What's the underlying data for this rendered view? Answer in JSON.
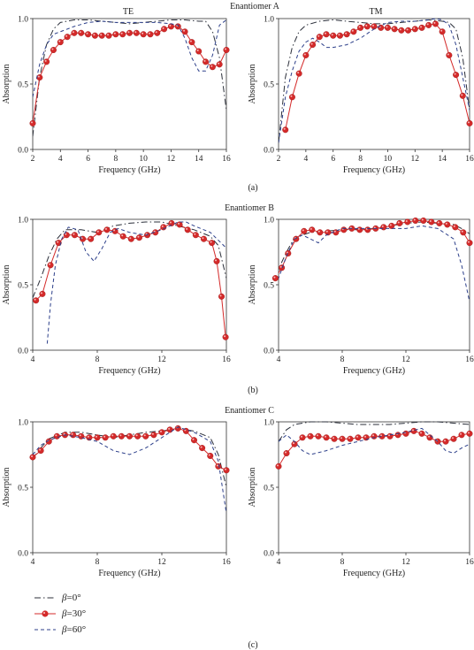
{
  "figure": {
    "row_titles": [
      "Enantiomer A",
      "Enantiomer B",
      "Enantiomer C"
    ],
    "column_titles": [
      "TE",
      "TM"
    ],
    "panel_labels": [
      "(a)",
      "(b)",
      "(c)"
    ],
    "legend": [
      {
        "symbol": "β",
        "label": "=0°",
        "style": "dash-dot"
      },
      {
        "symbol": "β",
        "label": "=30°",
        "style": "dots"
      },
      {
        "symbol": "β",
        "label": "=60°",
        "style": "dash"
      }
    ]
  },
  "colors": {
    "beta0": "#2b2f3a",
    "beta30": "#d42a2a",
    "beta60": "#2c3f8a",
    "axis": "#333333"
  },
  "chart_data": [
    {
      "type": "line",
      "title": "TE",
      "row_title": "Enantiomer A",
      "xlabel": "Frequency (GHz)",
      "ylabel": "Absorption",
      "xlim": [
        2,
        16
      ],
      "ylim": [
        0,
        1.0
      ],
      "xticks": [
        "2",
        "4",
        "6",
        "8",
        "10",
        "12",
        "14",
        "16"
      ],
      "yticks": [
        "0.0",
        "0.5",
        "1.0"
      ],
      "xtick_vals": [
        2,
        4,
        6,
        8,
        10,
        12,
        14,
        16
      ],
      "series": [
        {
          "name": "β=0°",
          "style": "dash-dot",
          "x": [
            2,
            2.5,
            3,
            3.5,
            4,
            5,
            6,
            7,
            8,
            9,
            10,
            11,
            12,
            13,
            14,
            14.5,
            15,
            15.5,
            16
          ],
          "y": [
            0.1,
            0.55,
            0.8,
            0.92,
            0.97,
            0.99,
            0.99,
            0.98,
            0.97,
            0.96,
            0.97,
            0.98,
            0.99,
            0.99,
            0.98,
            0.98,
            0.9,
            0.7,
            0.3
          ]
        },
        {
          "name": "β=30°",
          "style": "dots",
          "x": [
            2,
            2.5,
            3,
            3.5,
            4,
            4.5,
            5,
            5.5,
            6,
            6.5,
            7,
            7.5,
            8,
            8.5,
            9,
            9.5,
            10,
            10.5,
            11,
            11.5,
            12,
            12.5,
            13,
            13.5,
            14,
            14.5,
            15,
            15.5,
            16
          ],
          "y": [
            0.2,
            0.55,
            0.67,
            0.76,
            0.82,
            0.86,
            0.89,
            0.89,
            0.88,
            0.87,
            0.87,
            0.87,
            0.88,
            0.88,
            0.89,
            0.89,
            0.88,
            0.88,
            0.89,
            0.92,
            0.94,
            0.94,
            0.9,
            0.82,
            0.75,
            0.67,
            0.63,
            0.65,
            0.76
          ]
        },
        {
          "name": "β=60°",
          "style": "dash",
          "x": [
            2,
            2.5,
            3,
            3.5,
            4,
            5,
            6,
            7,
            8,
            9,
            10,
            11,
            12,
            12.5,
            13,
            13.5,
            14,
            14.5,
            15,
            15.5,
            16
          ],
          "y": [
            0.4,
            0.65,
            0.8,
            0.88,
            0.9,
            0.94,
            0.97,
            0.98,
            0.97,
            0.97,
            0.97,
            0.97,
            0.96,
            0.95,
            0.85,
            0.7,
            0.6,
            0.6,
            0.72,
            0.95,
            0.99
          ]
        }
      ]
    },
    {
      "type": "line",
      "title": "TM",
      "row_title": "Enantiomer A",
      "xlabel": "Frequency (GHz)",
      "ylabel": "Absorption",
      "xlim": [
        2,
        16
      ],
      "ylim": [
        0,
        1.0
      ],
      "xticks": [
        "2",
        "4",
        "6",
        "8",
        "10",
        "12",
        "14",
        "16"
      ],
      "yticks": [
        "0.0",
        "0.5",
        "1.0"
      ],
      "xtick_vals": [
        2,
        4,
        6,
        8,
        10,
        12,
        14,
        16
      ],
      "series": [
        {
          "name": "β=0°",
          "style": "dash-dot",
          "x": [
            2,
            2.5,
            3,
            3.5,
            4,
            5,
            6,
            7,
            8,
            9,
            10,
            11,
            12,
            13,
            14,
            14.5,
            15,
            15.5,
            16
          ],
          "y": [
            0.05,
            0.55,
            0.78,
            0.9,
            0.95,
            0.98,
            0.99,
            0.98,
            0.97,
            0.96,
            0.96,
            0.97,
            0.98,
            0.99,
            0.98,
            0.97,
            0.92,
            0.7,
            0.3
          ]
        },
        {
          "name": "β=30°",
          "style": "dots",
          "x": [
            2.5,
            3,
            3.5,
            4,
            4.5,
            5,
            5.5,
            6,
            6.5,
            7,
            7.5,
            8,
            8.5,
            9,
            9.5,
            10,
            10.5,
            11,
            11.5,
            12,
            12.5,
            13,
            13.5,
            14,
            14.5,
            15,
            15.5,
            16
          ],
          "y": [
            0.15,
            0.4,
            0.58,
            0.72,
            0.8,
            0.86,
            0.88,
            0.87,
            0.87,
            0.88,
            0.9,
            0.93,
            0.94,
            0.94,
            0.93,
            0.93,
            0.92,
            0.91,
            0.91,
            0.92,
            0.93,
            0.95,
            0.96,
            0.9,
            0.72,
            0.57,
            0.41,
            0.2
          ]
        },
        {
          "name": "β=60°",
          "style": "dash",
          "x": [
            2,
            2.5,
            3,
            3.5,
            4,
            4.5,
            5,
            5.5,
            6,
            7,
            8,
            9,
            10,
            11,
            12,
            13,
            13.5,
            14,
            14.5,
            15,
            15.5,
            16
          ],
          "y": [
            0.05,
            0.4,
            0.6,
            0.75,
            0.82,
            0.85,
            0.82,
            0.78,
            0.78,
            0.8,
            0.85,
            0.92,
            0.97,
            0.98,
            0.98,
            0.99,
            1.0,
            0.99,
            0.95,
            0.8,
            0.55,
            0.3
          ]
        }
      ]
    },
    {
      "type": "line",
      "title": "",
      "row_title": "Enantiomer B",
      "xlabel": "Frequency (GHz)",
      "ylabel": "Absorption",
      "xlim": [
        4,
        16
      ],
      "ylim": [
        0,
        1.0
      ],
      "xticks": [
        "4",
        "8",
        "12",
        "16"
      ],
      "yticks": [
        "0.0",
        "0.5",
        "1.0"
      ],
      "xtick_vals": [
        4,
        8,
        12,
        16
      ],
      "series": [
        {
          "name": "β=0°",
          "style": "dash-dot",
          "x": [
            4,
            4.5,
            5,
            5.5,
            6,
            7,
            8,
            9,
            10,
            11,
            12,
            13,
            14,
            15,
            15.5,
            16
          ],
          "y": [
            0.4,
            0.55,
            0.72,
            0.85,
            0.92,
            0.92,
            0.9,
            0.95,
            0.97,
            0.98,
            0.98,
            0.95,
            0.92,
            0.87,
            0.8,
            0.55
          ]
        },
        {
          "name": "β=30°",
          "style": "dots",
          "x": [
            4.2,
            4.6,
            5.1,
            5.6,
            6.1,
            6.6,
            7.1,
            7.6,
            8.1,
            8.6,
            9.1,
            9.6,
            10.1,
            10.6,
            11.1,
            11.6,
            12.1,
            12.6,
            13.1,
            13.6,
            14.1,
            14.6,
            15.1,
            15.4,
            15.7,
            15.95
          ],
          "y": [
            0.38,
            0.43,
            0.65,
            0.82,
            0.88,
            0.88,
            0.85,
            0.85,
            0.9,
            0.92,
            0.91,
            0.87,
            0.85,
            0.86,
            0.88,
            0.9,
            0.94,
            0.97,
            0.96,
            0.92,
            0.88,
            0.85,
            0.82,
            0.68,
            0.41,
            0.1
          ]
        },
        {
          "name": "β=60°",
          "style": "dash",
          "x": [
            4.9,
            5.1,
            5.4,
            5.8,
            6.2,
            6.8,
            7.3,
            7.8,
            8.3,
            8.8,
            9.3,
            10,
            11,
            12,
            13,
            13.5,
            14,
            15,
            16
          ],
          "y": [
            0.05,
            0.35,
            0.65,
            0.85,
            0.94,
            0.92,
            0.75,
            0.68,
            0.78,
            0.9,
            0.93,
            0.9,
            0.88,
            0.92,
            0.98,
            0.98,
            0.95,
            0.9,
            0.78
          ]
        }
      ]
    },
    {
      "type": "line",
      "title": "",
      "row_title": "Enantiomer B",
      "xlabel": "Frequency (GHz)",
      "ylabel": "Absorption",
      "xlim": [
        4,
        16
      ],
      "ylim": [
        0,
        1.0
      ],
      "xticks": [
        "4",
        "8",
        "12",
        "16"
      ],
      "yticks": [
        "0.0",
        "0.5",
        "1.0"
      ],
      "xtick_vals": [
        4,
        8,
        12,
        16
      ],
      "series": [
        {
          "name": "β=0°",
          "style": "dash-dot",
          "x": [
            3.7,
            4,
            4.5,
            5,
            6,
            7,
            8,
            9,
            10,
            11,
            12,
            13,
            14,
            15,
            15.5,
            16
          ],
          "y": [
            0.48,
            0.62,
            0.75,
            0.86,
            0.9,
            0.91,
            0.92,
            0.92,
            0.93,
            0.95,
            0.97,
            0.98,
            0.97,
            0.96,
            0.93,
            0.89
          ]
        },
        {
          "name": "β=30°",
          "style": "dots",
          "x": [
            3.8,
            4.2,
            4.6,
            5.1,
            5.6,
            6.1,
            6.6,
            7.1,
            7.6,
            8.1,
            8.6,
            9.1,
            9.6,
            10.1,
            10.6,
            11.1,
            11.6,
            12.1,
            12.6,
            13.1,
            13.6,
            14.1,
            14.6,
            15.1,
            15.6,
            16
          ],
          "y": [
            0.55,
            0.63,
            0.74,
            0.85,
            0.91,
            0.92,
            0.9,
            0.9,
            0.9,
            0.92,
            0.93,
            0.92,
            0.92,
            0.93,
            0.94,
            0.95,
            0.97,
            0.98,
            0.99,
            0.99,
            0.98,
            0.97,
            0.96,
            0.94,
            0.9,
            0.82
          ]
        },
        {
          "name": "β=60°",
          "style": "dash",
          "x": [
            3.7,
            4,
            4.5,
            5,
            5.5,
            6,
            6.5,
            7,
            8,
            9,
            10,
            11,
            12,
            13,
            14,
            15,
            15.5,
            16
          ],
          "y": [
            0.45,
            0.55,
            0.72,
            0.85,
            0.88,
            0.85,
            0.82,
            0.88,
            0.93,
            0.93,
            0.93,
            0.93,
            0.93,
            0.95,
            0.93,
            0.85,
            0.65,
            0.37
          ]
        }
      ]
    },
    {
      "type": "line",
      "title": "",
      "row_title": "Enantiomer C",
      "xlabel": "Frequency (GHz)",
      "ylabel": "Absorption",
      "xlim": [
        4,
        16
      ],
      "ylim": [
        0,
        1.0
      ],
      "xticks": [
        "4",
        "8",
        "12",
        "16"
      ],
      "yticks": [
        "0.0",
        "0.5",
        "1.0"
      ],
      "xtick_vals": [
        4,
        8,
        12,
        16
      ],
      "series": [
        {
          "name": "β=0°",
          "style": "dash-dot",
          "x": [
            4,
            4.5,
            5,
            6,
            7,
            8,
            9,
            10,
            11,
            12,
            13,
            14,
            15,
            15.5,
            16
          ],
          "y": [
            0.72,
            0.8,
            0.87,
            0.92,
            0.92,
            0.9,
            0.88,
            0.9,
            0.92,
            0.93,
            0.95,
            0.93,
            0.88,
            0.75,
            0.5
          ]
        },
        {
          "name": "β=30°",
          "style": "dots",
          "x": [
            4,
            4.5,
            5,
            5.5,
            6,
            6.5,
            7,
            7.5,
            8,
            8.5,
            9,
            9.5,
            10,
            10.5,
            11,
            11.5,
            12,
            12.5,
            13,
            13.5,
            14,
            14.5,
            15,
            15.5,
            16
          ],
          "y": [
            0.73,
            0.78,
            0.85,
            0.89,
            0.9,
            0.9,
            0.89,
            0.88,
            0.88,
            0.88,
            0.89,
            0.89,
            0.89,
            0.89,
            0.89,
            0.9,
            0.92,
            0.94,
            0.95,
            0.93,
            0.86,
            0.8,
            0.74,
            0.66,
            0.63
          ]
        },
        {
          "name": "β=60°",
          "style": "dash",
          "x": [
            4,
            4.5,
            5,
            6,
            7,
            8,
            9,
            10,
            11,
            12,
            13,
            14,
            15,
            15.5,
            16
          ],
          "y": [
            0.75,
            0.82,
            0.86,
            0.9,
            0.88,
            0.85,
            0.78,
            0.75,
            0.8,
            0.88,
            0.96,
            0.92,
            0.85,
            0.7,
            0.3
          ]
        }
      ]
    },
    {
      "type": "line",
      "title": "",
      "row_title": "Enantiomer C",
      "xlabel": "Frequency (GHz)",
      "ylabel": "Absorption",
      "xlim": [
        4,
        16
      ],
      "ylim": [
        0,
        1.0
      ],
      "xticks": [
        "4",
        "8",
        "12",
        "16"
      ],
      "yticks": [
        "0.0",
        "0.5",
        "1.0"
      ],
      "xtick_vals": [
        4,
        8,
        12,
        16
      ],
      "series": [
        {
          "name": "β=0°",
          "style": "dash-dot",
          "x": [
            4,
            4.5,
            5,
            6,
            7,
            8,
            9,
            10,
            11,
            12,
            13,
            14,
            15,
            16
          ],
          "y": [
            0.85,
            0.94,
            0.98,
            1.0,
            1.0,
            0.99,
            0.98,
            0.98,
            0.98,
            0.99,
            1.0,
            1.0,
            0.99,
            0.98
          ]
        },
        {
          "name": "β=30°",
          "style": "dots",
          "x": [
            4,
            4.5,
            5,
            5.5,
            6,
            6.5,
            7,
            7.5,
            8,
            8.5,
            9,
            9.5,
            10,
            10.5,
            11,
            11.5,
            12,
            12.5,
            13,
            13.5,
            14,
            14.5,
            15,
            15.5,
            16
          ],
          "y": [
            0.66,
            0.76,
            0.83,
            0.88,
            0.89,
            0.89,
            0.88,
            0.87,
            0.87,
            0.87,
            0.88,
            0.88,
            0.89,
            0.89,
            0.89,
            0.9,
            0.91,
            0.93,
            0.91,
            0.88,
            0.85,
            0.85,
            0.87,
            0.9,
            0.91
          ]
        },
        {
          "name": "β=60°",
          "style": "dash",
          "x": [
            4,
            4.5,
            5,
            5.5,
            6,
            7,
            8,
            9,
            10,
            11,
            12,
            13,
            14,
            14.5,
            15,
            15.5,
            16
          ],
          "y": [
            0.85,
            0.9,
            0.85,
            0.78,
            0.75,
            0.78,
            0.82,
            0.85,
            0.88,
            0.9,
            0.92,
            0.95,
            0.85,
            0.78,
            0.76,
            0.8,
            0.83
          ]
        }
      ]
    }
  ]
}
